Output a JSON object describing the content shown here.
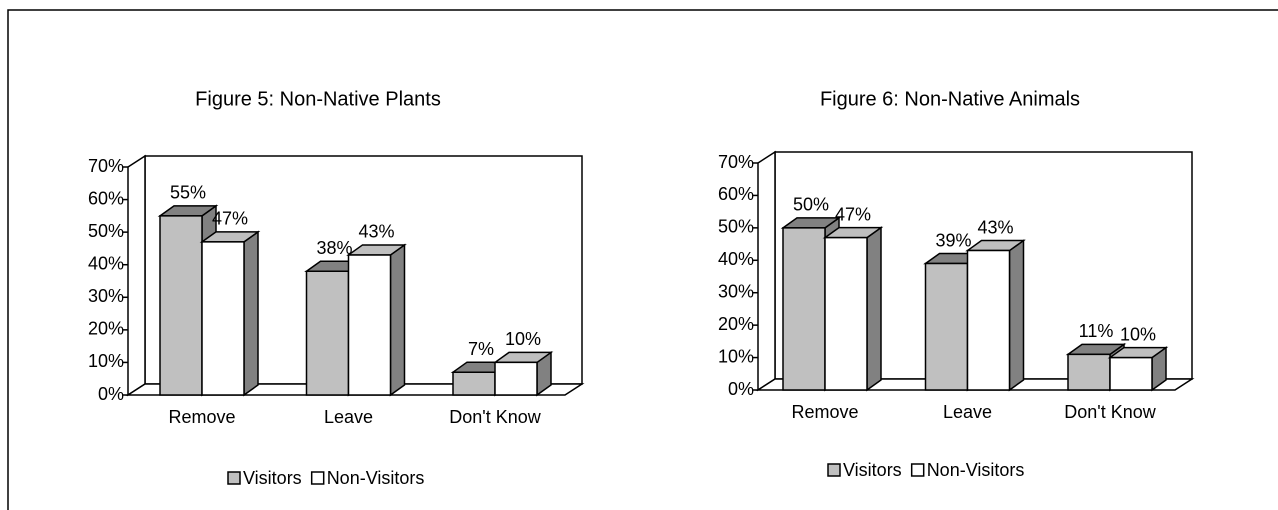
{
  "chart_data": [
    {
      "type": "bar3d",
      "title": "Figure 5: Non-Native Plants",
      "categories": [
        "Remove",
        "Leave",
        "Don't Know"
      ],
      "series": [
        {
          "name": "Visitors",
          "color": "#c0c0c0",
          "values": [
            55,
            38,
            7
          ],
          "value_labels": [
            "55%",
            "38%",
            "7%"
          ]
        },
        {
          "name": "Non-Visitors",
          "color": "#ffffff",
          "values": [
            47,
            43,
            10
          ],
          "value_labels": [
            "47%",
            "43%",
            "10%"
          ]
        }
      ],
      "ylim": [
        0,
        70
      ],
      "yticks": [
        {
          "value": 0,
          "label": "0%"
        },
        {
          "value": 10,
          "label": "10%"
        },
        {
          "value": 20,
          "label": "20%"
        },
        {
          "value": 30,
          "label": "30%"
        },
        {
          "value": 40,
          "label": "40%"
        },
        {
          "value": 50,
          "label": "50%"
        },
        {
          "value": 60,
          "label": "60%"
        },
        {
          "value": 70,
          "label": "70%"
        }
      ],
      "legend": "bottom"
    },
    {
      "type": "bar3d",
      "title": "Figure 6: Non-Native Animals",
      "categories": [
        "Remove",
        "Leave",
        "Don't Know"
      ],
      "series": [
        {
          "name": "Visitors",
          "color": "#c0c0c0",
          "values": [
            50,
            39,
            11
          ],
          "value_labels": [
            "50%",
            "39%",
            "11%"
          ]
        },
        {
          "name": "Non-Visitors",
          "color": "#ffffff",
          "values": [
            47,
            43,
            10
          ],
          "value_labels": [
            "47%",
            "43%",
            "10%"
          ]
        }
      ],
      "ylim": [
        0,
        70
      ],
      "yticks": [
        {
          "value": 0,
          "label": "0%"
        },
        {
          "value": 10,
          "label": "10%"
        },
        {
          "value": 20,
          "label": "20%"
        },
        {
          "value": 30,
          "label": "30%"
        },
        {
          "value": 40,
          "label": "40%"
        },
        {
          "value": 50,
          "label": "50%"
        },
        {
          "value": 60,
          "label": "60%"
        },
        {
          "value": 70,
          "label": "70%"
        }
      ],
      "legend": "bottom"
    }
  ]
}
